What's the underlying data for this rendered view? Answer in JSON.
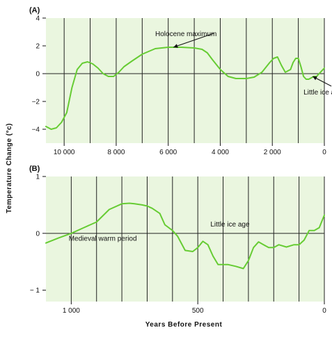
{
  "colors": {
    "plot_background": "#eaf6df",
    "curve": "#66cc33",
    "grid": "#222222",
    "zero_line": "#222222"
  },
  "ylabel": "Temperature Change (°c)",
  "xlabel": "Years Before Present",
  "chart_data": [
    {
      "type": "line",
      "panel_label": "(A)",
      "x_reversed": true,
      "xlim": [
        10700,
        0
      ],
      "ylim": [
        -5,
        4
      ],
      "xticks": [
        10000,
        8000,
        6000,
        4000,
        2000,
        0
      ],
      "xtick_labels": [
        "10 000",
        "8 000",
        "6 000",
        "4 000",
        "2 000",
        "0"
      ],
      "yticks": [
        4,
        2,
        0,
        -2,
        -4
      ],
      "ytick_labels": [
        "4",
        "2",
        "0",
        "−2",
        "−4"
      ],
      "vertical_grid": [
        10000,
        9000,
        8000,
        7000,
        6000,
        5000,
        4000,
        3000,
        2000,
        1000,
        0
      ],
      "annotations": [
        {
          "text": "Holocene maximum",
          "x": 6500,
          "y": 2.7,
          "arrow_to": [
            5800,
            1.9
          ]
        },
        {
          "text": "Little ice age",
          "x": 800,
          "y": -1.5,
          "arrow_to": [
            450,
            -0.2
          ]
        }
      ],
      "series": [
        {
          "x": [
            10700,
            10500,
            10300,
            10100,
            9900,
            9700,
            9500,
            9300,
            9100,
            8900,
            8700,
            8500,
            8300,
            8100,
            7900,
            7700,
            7400,
            7000,
            6500,
            6000,
            5500,
            5000,
            4700,
            4500,
            4300,
            4000,
            3700,
            3400,
            3000,
            2700,
            2400,
            2100,
            1950,
            1800,
            1650,
            1500,
            1300,
            1200,
            1100,
            1000,
            900,
            800,
            700,
            600,
            500,
            400,
            300,
            200,
            100,
            0
          ],
          "y": [
            -3.8,
            -4.0,
            -3.9,
            -3.5,
            -2.8,
            -1.0,
            0.3,
            0.75,
            0.85,
            0.7,
            0.4,
            0.0,
            -0.2,
            -0.2,
            0.1,
            0.5,
            0.9,
            1.4,
            1.8,
            1.9,
            1.9,
            1.85,
            1.75,
            1.5,
            1.0,
            0.3,
            -0.2,
            -0.35,
            -0.35,
            -0.25,
            0.1,
            0.8,
            1.1,
            1.2,
            0.6,
            0.1,
            0.3,
            0.8,
            1.1,
            1.1,
            0.5,
            -0.2,
            -0.4,
            -0.4,
            -0.3,
            -0.2,
            -0.2,
            0.0,
            0.2,
            0.4
          ]
        }
      ]
    },
    {
      "type": "line",
      "panel_label": "(B)",
      "x_reversed": true,
      "xlim": [
        1100,
        0
      ],
      "ylim": [
        -1.2,
        1
      ],
      "xticks": [
        1000,
        500,
        0
      ],
      "xtick_labels": [
        "1 000",
        "500",
        "0"
      ],
      "yticks": [
        1,
        0,
        -1
      ],
      "ytick_labels": [
        "1",
        "0",
        "− 1"
      ],
      "vertical_grid": [
        1000,
        900,
        800,
        700,
        600,
        500,
        400,
        300,
        200,
        100,
        0
      ],
      "annotations": [
        {
          "text": "Medieval warm period",
          "x": 1010,
          "y": -0.13
        },
        {
          "text": "Little ice age",
          "x": 450,
          "y": 0.12
        }
      ],
      "series": [
        {
          "x": [
            1100,
            1050,
            1000,
            950,
            900,
            850,
            800,
            770,
            750,
            720,
            700,
            680,
            650,
            630,
            600,
            580,
            550,
            520,
            500,
            480,
            460,
            440,
            420,
            400,
            380,
            350,
            320,
            300,
            280,
            260,
            240,
            220,
            200,
            180,
            150,
            120,
            100,
            80,
            60,
            40,
            20,
            0
          ],
          "y": [
            -0.17,
            -0.08,
            0.0,
            0.1,
            0.2,
            0.42,
            0.52,
            0.53,
            0.52,
            0.5,
            0.48,
            0.44,
            0.35,
            0.15,
            0.05,
            -0.05,
            -0.3,
            -0.32,
            -0.25,
            -0.14,
            -0.2,
            -0.4,
            -0.55,
            -0.55,
            -0.55,
            -0.58,
            -0.62,
            -0.48,
            -0.25,
            -0.15,
            -0.2,
            -0.25,
            -0.25,
            -0.2,
            -0.24,
            -0.2,
            -0.2,
            -0.12,
            0.05,
            0.05,
            0.1,
            0.32
          ]
        }
      ]
    }
  ]
}
